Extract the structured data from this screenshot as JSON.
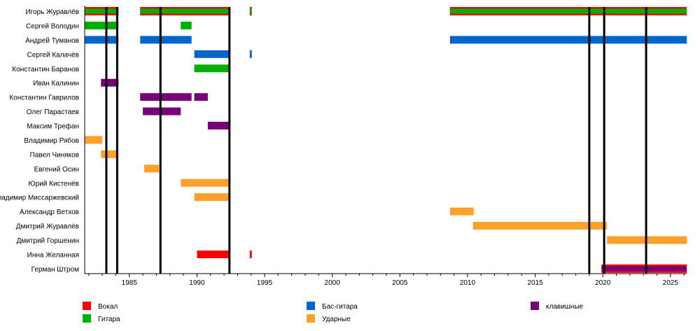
{
  "chart_data": {
    "type": "timeline",
    "xlim": [
      1981.7,
      2026.2
    ],
    "xticks": [
      1985,
      1990,
      1995,
      2000,
      2005,
      2010,
      2015,
      2020,
      2025
    ],
    "roles": [
      {
        "key": "vocal",
        "name": "Вокал",
        "color": "#ff0000"
      },
      {
        "key": "guitar",
        "name": "Гитара",
        "color": "#00b000"
      },
      {
        "key": "bass",
        "name": "Бас-гитара",
        "color": "#0066cc"
      },
      {
        "key": "drums",
        "name": "Ударные",
        "color": "#ffa028"
      },
      {
        "key": "keys",
        "name": "клавишные",
        "color": "#780078"
      }
    ],
    "members": [
      {
        "name": "Игорь Журавлёв",
        "periods": [
          {
            "role": "guitar",
            "sub": "vocal",
            "from": 1981.7,
            "to": 1984.2
          },
          {
            "role": "guitar",
            "sub": "vocal",
            "from": 1985.8,
            "to": 1992.4
          },
          {
            "role": "guitar",
            "sub": "vocal",
            "from": 1993.9,
            "to": 1994.05
          },
          {
            "role": "guitar",
            "sub": "vocal",
            "from": 2008.7,
            "to": 2026.2
          }
        ]
      },
      {
        "name": "Сергей Володин",
        "periods": [
          {
            "role": "guitar",
            "from": 1981.7,
            "to": 1984.2
          },
          {
            "role": "guitar",
            "from": 1988.8,
            "to": 1989.6
          }
        ]
      },
      {
        "name": "Андрей Туманов",
        "periods": [
          {
            "role": "bass",
            "from": 1981.7,
            "to": 1984.2
          },
          {
            "role": "bass",
            "from": 1985.8,
            "to": 1989.6
          },
          {
            "role": "bass",
            "from": 2008.7,
            "to": 2026.2
          }
        ]
      },
      {
        "name": "Сергей Калачёв",
        "periods": [
          {
            "role": "bass",
            "from": 1989.8,
            "to": 1992.4
          },
          {
            "role": "bass",
            "from": 1993.9,
            "to": 1994.05
          }
        ]
      },
      {
        "name": "Константин Баранов",
        "periods": [
          {
            "role": "guitar",
            "from": 1989.8,
            "to": 1992.4
          }
        ]
      },
      {
        "name": "Иван Калинин",
        "periods": [
          {
            "role": "keys",
            "from": 1982.9,
            "to": 1984.2
          }
        ]
      },
      {
        "name": "Константин Гаврилов",
        "periods": [
          {
            "role": "keys",
            "from": 1985.8,
            "to": 1989.6
          },
          {
            "role": "keys",
            "from": 1989.8,
            "to": 1990.8
          }
        ]
      },
      {
        "name": "Олег Парастаев",
        "periods": [
          {
            "role": "keys",
            "from": 1986.0,
            "to": 1988.8
          }
        ]
      },
      {
        "name": "Максим Трефан",
        "periods": [
          {
            "role": "keys",
            "from": 1990.8,
            "to": 1992.4
          }
        ]
      },
      {
        "name": "Владимир Рябов",
        "periods": [
          {
            "role": "drums",
            "from": 1981.7,
            "to": 1983.0
          }
        ]
      },
      {
        "name": "Павел Чиняков",
        "periods": [
          {
            "role": "drums",
            "from": 1982.9,
            "to": 1984.2
          }
        ]
      },
      {
        "name": "Евгений Осин",
        "periods": [
          {
            "role": "drums",
            "from": 1986.1,
            "to": 1987.2
          }
        ]
      },
      {
        "name": "Юрий Кистенёв",
        "periods": [
          {
            "role": "drums",
            "from": 1988.8,
            "to": 1992.4
          }
        ]
      },
      {
        "name": "Владимир Миссаржевский",
        "periods": [
          {
            "role": "drums",
            "from": 1989.8,
            "to": 1992.4
          }
        ]
      },
      {
        "name": "Александр Ветхов",
        "periods": [
          {
            "role": "drums",
            "from": 2008.7,
            "to": 2010.45
          }
        ]
      },
      {
        "name": "Дмитрий Журавлёв",
        "periods": [
          {
            "role": "drums",
            "from": 2010.4,
            "to": 2020.3
          }
        ]
      },
      {
        "name": "Дмитрий Горшенин",
        "periods": [
          {
            "role": "drums",
            "from": 2020.3,
            "to": 2026.2
          }
        ]
      },
      {
        "name": "Инна Желанная",
        "periods": [
          {
            "role": "vocal",
            "from": 1990.0,
            "to": 1992.4
          },
          {
            "role": "vocal",
            "from": 1993.9,
            "to": 1994.05
          }
        ]
      },
      {
        "name": "Герман Штром",
        "periods": [
          {
            "role": "keys",
            "sub": "vocal",
            "from": 2019.9,
            "to": 2026.2
          }
        ]
      }
    ],
    "events": [
      1983.3,
      1984.1,
      1987.3,
      1992.4,
      2019.0,
      2020.1,
      2023.2
    ],
    "legend": "bottom",
    "grid": false
  }
}
